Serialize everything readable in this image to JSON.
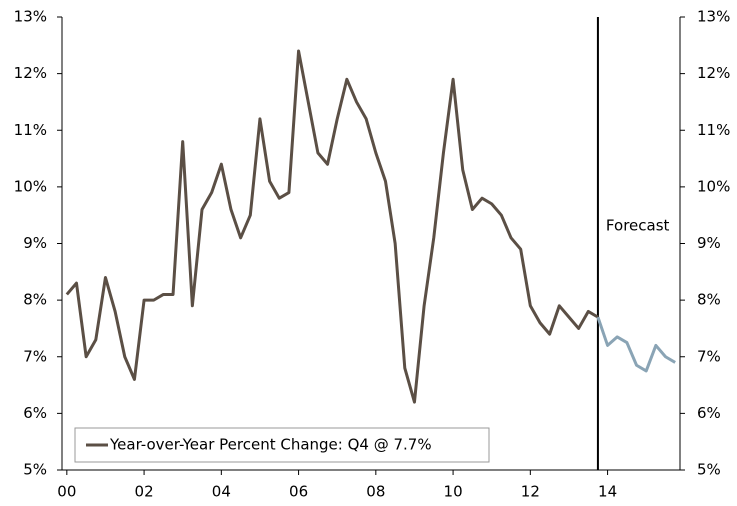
{
  "chart_data": {
    "type": "line",
    "x": [
      2000,
      2000.25,
      2000.5,
      2000.75,
      2001,
      2001.25,
      2001.5,
      2001.75,
      2002,
      2002.25,
      2002.5,
      2002.75,
      2003,
      2003.25,
      2003.5,
      2003.75,
      2004,
      2004.25,
      2004.5,
      2004.75,
      2005,
      2005.25,
      2005.5,
      2005.75,
      2006,
      2006.25,
      2006.5,
      2006.75,
      2007,
      2007.25,
      2007.5,
      2007.75,
      2008,
      2008.25,
      2008.5,
      2008.75,
      2009,
      2009.25,
      2009.5,
      2009.75,
      2010,
      2010.25,
      2010.5,
      2010.75,
      2011,
      2011.25,
      2011.5,
      2011.75,
      2012,
      2012.25,
      2012.5,
      2012.75,
      2013,
      2013.25,
      2013.5,
      2013.75,
      2014,
      2014.25,
      2014.5,
      2014.75,
      2015,
      2015.25,
      2015.5,
      2015.75
    ],
    "series": [
      {
        "name": "Year-over-Year Percent Change: Q4 @ 7.7%",
        "color": "#5b4f45",
        "values": [
          8.1,
          8.3,
          7.0,
          7.3,
          8.4,
          7.8,
          7.0,
          6.6,
          8.0,
          8.0,
          8.1,
          8.1,
          10.8,
          7.9,
          9.6,
          9.9,
          10.4,
          9.6,
          9.1,
          9.5,
          11.2,
          10.1,
          9.8,
          9.9,
          12.4,
          11.5,
          10.6,
          10.4,
          11.2,
          11.9,
          11.5,
          11.2,
          10.6,
          10.1,
          9.0,
          6.8,
          6.2,
          7.9,
          9.1,
          10.6,
          11.9,
          10.3,
          9.6,
          9.8,
          9.7,
          9.5,
          9.1,
          8.9,
          7.9,
          7.6,
          7.4,
          7.9,
          7.7,
          7.5,
          7.8,
          7.7,
          null,
          null,
          null,
          null,
          null,
          null,
          null,
          null
        ]
      },
      {
        "color": "#8aa4b5",
        "values": [
          null,
          null,
          null,
          null,
          null,
          null,
          null,
          null,
          null,
          null,
          null,
          null,
          null,
          null,
          null,
          null,
          null,
          null,
          null,
          null,
          null,
          null,
          null,
          null,
          null,
          null,
          null,
          null,
          null,
          null,
          null,
          null,
          null,
          null,
          null,
          null,
          null,
          null,
          null,
          null,
          null,
          null,
          null,
          null,
          null,
          null,
          null,
          null,
          null,
          null,
          null,
          null,
          null,
          null,
          null,
          7.7,
          7.2,
          7.35,
          7.25,
          6.85,
          6.75,
          7.2,
          7.0,
          6.9
        ]
      }
    ],
    "forecast_x": 2013.75,
    "annotation": "Forecast",
    "xlim": [
      1999.875,
      2015.875
    ],
    "xticks": [
      {
        "value": 2000,
        "label": "00"
      },
      {
        "value": 2002,
        "label": "02"
      },
      {
        "value": 2004,
        "label": "04"
      },
      {
        "value": 2006,
        "label": "06"
      },
      {
        "value": 2008,
        "label": "08"
      },
      {
        "value": 2010,
        "label": "10"
      },
      {
        "value": 2012,
        "label": "12"
      },
      {
        "value": 2014,
        "label": "14"
      }
    ],
    "ylim": [
      5,
      13
    ],
    "yticks": [
      {
        "value": 5,
        "label": "5%"
      },
      {
        "value": 6,
        "label": "6%"
      },
      {
        "value": 7,
        "label": "7%"
      },
      {
        "value": 8,
        "label": "8%"
      },
      {
        "value": 9,
        "label": "9%"
      },
      {
        "value": 10,
        "label": "10%"
      },
      {
        "value": 11,
        "label": "11%"
      },
      {
        "value": 12,
        "label": "12%"
      },
      {
        "value": 13,
        "label": "13%"
      }
    ],
    "y2lim": [
      5,
      13
    ],
    "y2ticks": [
      {
        "value": 5,
        "label": "5%"
      },
      {
        "value": 6,
        "label": "6%"
      },
      {
        "value": 7,
        "label": "7%"
      },
      {
        "value": 8,
        "label": "8%"
      },
      {
        "value": 9,
        "label": "9%"
      },
      {
        "value": 10,
        "label": "10%"
      },
      {
        "value": 11,
        "label": "11%"
      },
      {
        "value": 12,
        "label": "12%"
      },
      {
        "value": 13,
        "label": "13%"
      }
    ],
    "grid": false
  }
}
